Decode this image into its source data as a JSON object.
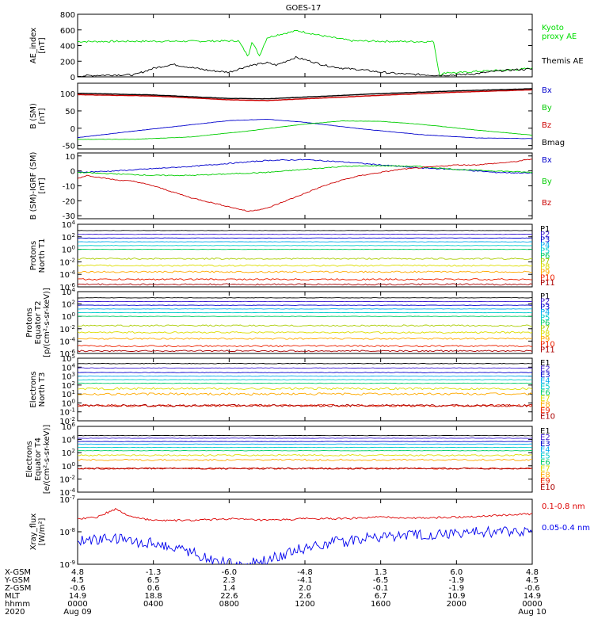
{
  "chart_data": {
    "type": "line",
    "title": "GOES-17",
    "x": {
      "start_label": "Aug 09",
      "end_label": "Aug 10",
      "hours": [
        0,
        4,
        8,
        12,
        16,
        20,
        24
      ],
      "hhmm": [
        "0000",
        "0400",
        "0800",
        "1200",
        "1600",
        "2000",
        "0000"
      ],
      "dates": [
        "Aug 09",
        "Aug 10"
      ]
    },
    "footer": {
      "row_labels": [
        "X-GSM",
        "Y-GSM",
        "Z-GSM",
        "MLT",
        "hhmm",
        "2020"
      ],
      "x_gsm": [
        "4.8",
        "-1.3",
        "-6.0",
        "-4.8",
        "1.3",
        "6.0",
        "4.8"
      ],
      "y_gsm": [
        "4.5",
        "6.5",
        "2.3",
        "-4.1",
        "-6.5",
        "-1.9",
        "4.5"
      ],
      "z_gsm": [
        "-0.6",
        "0.6",
        "1.4",
        "2.0",
        "-0.1",
        "-1.9",
        "-0.6"
      ],
      "mlt": [
        "14.9",
        "18.8",
        "22.6",
        "2.6",
        "6.7",
        "10.9",
        "14.9"
      ]
    },
    "panels": [
      {
        "id": "ae",
        "ylabel": [
          "AE_index",
          "[nT]"
        ],
        "ylim": [
          0,
          800
        ],
        "scale": "linear",
        "ticks": [
          0,
          200,
          400,
          600,
          800
        ],
        "tick_labels": [
          "0",
          "200",
          "400",
          "600",
          "800"
        ],
        "series": [
          {
            "name": "Kyoto proxy AE",
            "legend": [
              "Kyoto",
              "proxy AE"
            ],
            "color": "#00dd00",
            "x": [
              0,
              3,
              6,
              8.5,
              9.0,
              9.2,
              9.6,
              10,
              10.6,
              11,
              11.6,
              12,
              12.6,
              13.5,
              14.5,
              16,
              18,
              18.8,
              19.1,
              19.5,
              20,
              21,
              22,
              23,
              24
            ],
            "y": [
              450,
              455,
              455,
              460,
              260,
              450,
              270,
              500,
              540,
              560,
              590,
              570,
              540,
              500,
              460,
              455,
              450,
              450,
              20,
              60,
              50,
              70,
              80,
              90,
              110
            ]
          },
          {
            "name": "Themis AE",
            "legend": [
              "Themis AE"
            ],
            "color": "#000000",
            "x": [
              0,
              1,
              2,
              3,
              4,
              5,
              6,
              7,
              8,
              9,
              10,
              10.5,
              11,
              11.5,
              12,
              13,
              14,
              15,
              16,
              17,
              18,
              19,
              20,
              21,
              22,
              23,
              24
            ],
            "y": [
              10,
              20,
              25,
              25,
              110,
              160,
              120,
              80,
              60,
              140,
              180,
              150,
              200,
              250,
              220,
              150,
              110,
              90,
              60,
              40,
              30,
              20,
              25,
              40,
              70,
              90,
              100
            ]
          }
        ]
      },
      {
        "id": "bsm",
        "ylabel": [
          "B (SM)",
          "[nT]"
        ],
        "ylim": [
          -60,
          130
        ],
        "scale": "linear",
        "ticks": [
          -50,
          0,
          50,
          100
        ],
        "tick_labels": [
          "-50",
          "0",
          "50",
          "100"
        ],
        "series": [
          {
            "name": "Bx",
            "legend": [
              "Bx"
            ],
            "color": "#0000cc",
            "x": [
              0,
              3,
              6,
              8,
              10,
              12,
              15,
              18,
              21,
              24
            ],
            "y": [
              -27,
              -8,
              10,
              22,
              26,
              17,
              -2,
              -18,
              -28,
              -30
            ]
          },
          {
            "name": "By",
            "legend": [
              "By"
            ],
            "color": "#00cc00",
            "x": [
              0,
              3,
              6,
              9,
              12,
              14,
              16,
              18,
              21,
              24
            ],
            "y": [
              -32,
              -32,
              -25,
              -8,
              12,
              21,
              20,
              12,
              -5,
              -20
            ]
          },
          {
            "name": "Bz",
            "legend": [
              "Bz"
            ],
            "color": "#cc0000",
            "x": [
              0,
              4,
              8,
              10,
              12,
              16,
              20,
              24
            ],
            "y": [
              97,
              93,
              82,
              80,
              85,
              95,
              104,
              111
            ]
          },
          {
            "name": "Bmag",
            "legend": [
              "Bmag"
            ],
            "color": "#000000",
            "x": [
              0,
              4,
              8,
              10,
              12,
              16,
              20,
              24
            ],
            "y": [
              101,
              96,
              86,
              85,
              90,
              100,
              108,
              114
            ]
          }
        ]
      },
      {
        "id": "bigrf",
        "ylabel": [
          "B (SM)-IGRF (SM)",
          "[nT]"
        ],
        "ylim": [
          -32,
          12
        ],
        "scale": "linear",
        "ticks": [
          -30,
          -20,
          -10,
          0,
          10
        ],
        "tick_labels": [
          "-30",
          "-20",
          "-10",
          "0",
          "10"
        ],
        "series": [
          {
            "name": "Bx",
            "legend": [
              "Bx"
            ],
            "color": "#0000cc",
            "x": [
              0,
              2,
              4,
              6,
              8,
              10,
              12,
              14,
              16,
              18,
              20,
              22,
              24
            ],
            "y": [
              -1,
              0,
              1.5,
              3,
              5,
              7,
              7.5,
              6,
              4,
              2,
              1,
              -1,
              -1.5
            ]
          },
          {
            "name": "By",
            "legend": [
              "By"
            ],
            "color": "#00cc00",
            "x": [
              0,
              2,
              4,
              6,
              8,
              10,
              12,
              14,
              16,
              18,
              20,
              22,
              24
            ],
            "y": [
              -1,
              -2,
              -3,
              -3,
              -2,
              -1,
              1,
              3,
              3.5,
              3,
              1,
              0,
              -1
            ]
          },
          {
            "name": "Bz",
            "legend": [
              "Bz"
            ],
            "color": "#cc0000",
            "x": [
              0,
              0.5,
              1,
              2,
              3,
              4,
              5,
              6,
              7,
              8,
              9,
              10,
              11,
              12,
              13,
              14,
              15,
              16,
              17,
              18,
              19,
              20,
              21,
              22,
              23,
              24
            ],
            "y": [
              -5,
              -3,
              -4,
              -6,
              -7,
              -10,
              -14,
              -18,
              -21,
              -24,
              -27,
              -25,
              -20,
              -15,
              -10,
              -6,
              -3,
              -1,
              1,
              2,
              3,
              4,
              4,
              5,
              6,
              8
            ]
          }
        ]
      },
      {
        "id": "pnt1",
        "ylabel": [
          "Protons",
          "North T1"
        ],
        "ylim": [
          -6,
          4
        ],
        "scale": "log",
        "ticks": [
          -6,
          -4,
          -2,
          0,
          2,
          4
        ],
        "tick_labels": [
          "10-6",
          "10-4",
          "10-2",
          "100",
          "102",
          "104"
        ],
        "legend_labels": [
          "P1",
          "P2",
          "P3",
          "P4",
          "P5",
          "P6",
          "P7",
          "P8",
          "P9",
          "P10",
          "P11"
        ],
        "series_log10": [
          3.0,
          2.4,
          1.8,
          1.2,
          0.6,
          0.0,
          -1.5,
          -2.6,
          -3.6,
          -4.8,
          -5.6
        ],
        "colors": [
          "#000000",
          "#3b1ad0",
          "#0000cc",
          "#00aaee",
          "#00cccc",
          "#00cc66",
          "#aacc00",
          "#dddd00",
          "#ffaa00",
          "#ee2200",
          "#aa0000"
        ]
      },
      {
        "id": "pet2",
        "ylabel": [
          "Protons",
          "Equator T2",
          "[p/(cm²-s-sr-keV)]"
        ],
        "ylim": [
          -6,
          4
        ],
        "scale": "log",
        "ticks": [
          -6,
          -4,
          -2,
          0,
          2,
          4
        ],
        "tick_labels": [
          "10-6",
          "10-4",
          "10-2",
          "100",
          "102",
          "104"
        ],
        "legend_labels": [
          "P1",
          "P2",
          "P3",
          "P4",
          "P5",
          "P6",
          "P7",
          "P8",
          "P9",
          "P10",
          "P11"
        ],
        "series_log10": [
          3.0,
          2.4,
          1.8,
          1.2,
          0.6,
          0.0,
          -1.5,
          -2.6,
          -3.6,
          -4.8,
          -5.6
        ],
        "colors": [
          "#000000",
          "#3b1ad0",
          "#0000cc",
          "#00aaee",
          "#00cccc",
          "#00cc66",
          "#aacc00",
          "#dddd00",
          "#ffaa00",
          "#ee2200",
          "#aa0000"
        ]
      },
      {
        "id": "ent3",
        "ylabel": [
          "Electrons",
          "North T3"
        ],
        "ylim": [
          -2,
          5
        ],
        "scale": "log",
        "ticks": [
          -2,
          -1,
          0,
          1,
          2,
          3,
          4,
          5
        ],
        "tick_labels": [
          "10-2",
          "10-1",
          "100",
          "101",
          "102",
          "103",
          "104",
          "105"
        ],
        "legend_labels": [
          "E1",
          "E2",
          "E3",
          "E4",
          "E5",
          "E6",
          "E7",
          "E8",
          "E9",
          "E10"
        ],
        "series_log10": [
          4.4,
          3.9,
          3.4,
          3.0,
          2.6,
          2.2,
          1.6,
          1.0,
          -0.3,
          -0.3
        ],
        "colors": [
          "#000000",
          "#3b1ad0",
          "#0000cc",
          "#00aaee",
          "#00cccc",
          "#00cc66",
          "#dddd00",
          "#ffaa00",
          "#ee2200",
          "#aa0000"
        ]
      },
      {
        "id": "eet4",
        "ylabel": [
          "Electrons",
          "Equator T4",
          "[e/(cm²-s-sr-keV)]"
        ],
        "ylim": [
          -4,
          6
        ],
        "scale": "log",
        "ticks": [
          -4,
          -2,
          0,
          2,
          4,
          6
        ],
        "tick_labels": [
          "10-4",
          "10-2",
          "100",
          "102",
          "104",
          "106"
        ],
        "legend_labels": [
          "E1",
          "E2",
          "E3",
          "E4",
          "E5",
          "E6",
          "E7",
          "E8",
          "E9",
          "E10"
        ],
        "series_log10": [
          4.6,
          4.2,
          3.7,
          3.3,
          2.8,
          2.3,
          1.6,
          0.9,
          -0.4,
          -0.4
        ],
        "colors": [
          "#000000",
          "#3b1ad0",
          "#0000cc",
          "#00aaee",
          "#00cccc",
          "#00cc66",
          "#dddd00",
          "#ffaa00",
          "#ee2200",
          "#aa0000"
        ]
      },
      {
        "id": "xray",
        "ylabel": [
          "Xray_flux",
          "[W/m²]"
        ],
        "ylim": [
          -9,
          -7
        ],
        "scale": "log",
        "ticks": [
          -9,
          -8,
          -7
        ],
        "tick_labels": [
          "10-9",
          "10-8",
          "10-7"
        ],
        "series": [
          {
            "name": "0.1-0.8 nm",
            "legend": [
              "0.1-0.8 nm"
            ],
            "color": "#dd0000",
            "x": [
              0,
              1,
              2,
              2.5,
              3,
              4,
              6,
              8,
              10,
              12,
              14,
              16,
              18,
              20,
              22,
              24
            ],
            "y": [
              -7.6,
              -7.55,
              -7.3,
              -7.45,
              -7.55,
              -7.65,
              -7.65,
              -7.6,
              -7.65,
              -7.6,
              -7.6,
              -7.55,
              -7.58,
              -7.55,
              -7.5,
              -7.45
            ]
          },
          {
            "name": "0.05-0.4 nm",
            "legend": [
              "0.05-0.4 nm"
            ],
            "color": "#0000ee",
            "x": [
              0,
              1,
              2,
              3,
              4,
              5,
              6,
              7,
              8,
              9,
              10,
              11,
              12,
              13,
              14,
              15,
              16,
              18,
              20,
              22,
              24
            ],
            "y": [
              -8.3,
              -8.25,
              -8.2,
              -8.3,
              -8.35,
              -8.45,
              -8.6,
              -8.85,
              -9.0,
              -9.0,
              -8.9,
              -8.65,
              -8.5,
              -8.35,
              -8.3,
              -8.2,
              -8.15,
              -8.1,
              -8.05,
              -8.0,
              -7.95
            ]
          }
        ]
      }
    ]
  }
}
